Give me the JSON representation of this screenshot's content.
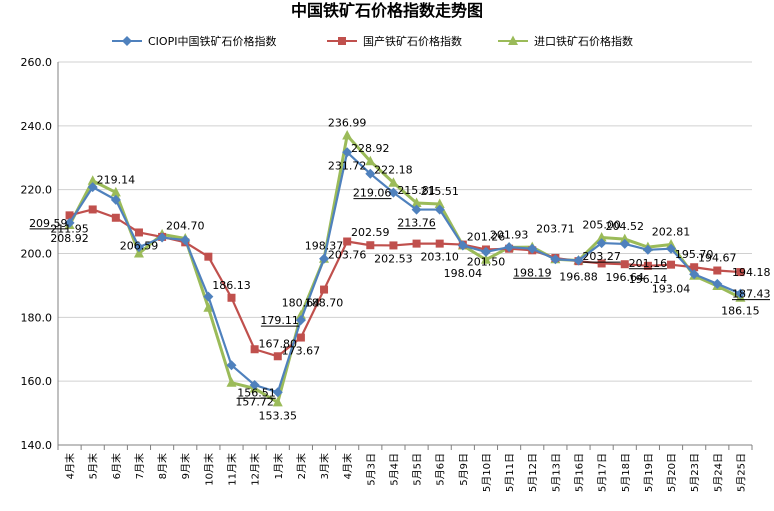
{
  "chart_data": {
    "type": "line",
    "title": "中国铁矿石价格指数走势图",
    "xlabel": "",
    "ylabel": "",
    "ylim": [
      140,
      260
    ],
    "yticks": [
      "140.0",
      "160.0",
      "180.0",
      "200.0",
      "220.0",
      "240.0",
      "260.0"
    ],
    "grid": "horizontal",
    "legend_position": "top",
    "categories": [
      "4月末",
      "5月末",
      "6月末",
      "7月末",
      "8月末",
      "9月末",
      "10月末",
      "11月末",
      "12月末",
      "1月末",
      "2月末",
      "3月末",
      "4月末",
      "5月3日",
      "5月4日",
      "5月5日",
      "5月6日",
      "5月9日",
      "5月10日",
      "5月11日",
      "5月12日",
      "5月13日",
      "5月16日",
      "5月17日",
      "5月18日",
      "5月19日",
      "5月20日",
      "5月23日",
      "5月24日",
      "5月25日"
    ],
    "series": [
      {
        "name": "CIOPI中国铁矿石价格指数",
        "color": "#4F81BD",
        "marker": "diamond",
        "values": [
          209.59,
          220.8,
          216.8,
          202.0,
          205.0,
          204.2,
          186.5,
          165.0,
          158.8,
          156.51,
          179.11,
          198.37,
          231.72,
          225.0,
          219.06,
          213.76,
          213.76,
          202.5,
          200.5,
          202.0,
          201.5,
          198.19,
          197.8,
          203.27,
          203.0,
          201.16,
          201.5,
          193.5,
          190.5,
          187.43
        ]
      },
      {
        "name": "国产铁矿石价格指数",
        "color": "#C0504D",
        "marker": "square",
        "values": [
          211.95,
          213.8,
          211.2,
          206.59,
          205.2,
          203.5,
          199.0,
          186.13,
          170.0,
          167.8,
          173.67,
          188.7,
          203.76,
          202.59,
          202.53,
          203.1,
          203.1,
          202.8,
          201.26,
          201.5,
          201.0,
          198.6,
          197.6,
          196.88,
          196.64,
          196.14,
          196.5,
          195.7,
          194.67,
          194.18
        ]
      },
      {
        "name": "进口铁矿石价格指数",
        "color": "#9BBB59",
        "marker": "triangle",
        "values": [
          208.92,
          222.8,
          219.14,
          200.0,
          206.0,
          204.7,
          183.0,
          159.5,
          157.72,
          153.35,
          180.64,
          198.37,
          236.99,
          228.92,
          222.18,
          215.81,
          215.51,
          202.5,
          198.04,
          201.93,
          202.0,
          198.19,
          197.8,
          205.0,
          204.52,
          202.0,
          202.81,
          193.04,
          189.8,
          186.15
        ]
      }
    ],
    "labels": [
      {
        "text": "211.95",
        "cat": 0,
        "y": 211.95,
        "anchor": "below"
      },
      {
        "text": "209.59",
        "cat": 0,
        "y": 209.59,
        "anchor": "left",
        "underline": true
      },
      {
        "text": "208.92",
        "cat": 0,
        "y": 208.92,
        "anchor": "below"
      },
      {
        "text": "219.14",
        "cat": 2,
        "y": 219.14,
        "anchor": "above"
      },
      {
        "text": "206.59",
        "cat": 3,
        "y": 206.59,
        "anchor": "below"
      },
      {
        "text": "204.70",
        "cat": 5,
        "y": 204.7,
        "anchor": "above"
      },
      {
        "text": "186.13",
        "cat": 7,
        "y": 186.13,
        "anchor": "above"
      },
      {
        "text": "157.72",
        "cat": 8,
        "y": 157.72,
        "anchor": "below"
      },
      {
        "text": "156.51",
        "cat": 9,
        "y": 156.51,
        "anchor": "left",
        "underline": true
      },
      {
        "text": "153.35",
        "cat": 9,
        "y": 153.35,
        "anchor": "below"
      },
      {
        "text": "167.80",
        "cat": 9,
        "y": 167.8,
        "anchor": "above"
      },
      {
        "text": "180.64",
        "cat": 10,
        "y": 180.64,
        "anchor": "above"
      },
      {
        "text": "179.11",
        "cat": 10,
        "y": 179.11,
        "anchor": "left",
        "underline": true
      },
      {
        "text": "173.67",
        "cat": 10,
        "y": 173.67,
        "anchor": "below"
      },
      {
        "text": "198.37",
        "cat": 11,
        "y": 198.37,
        "anchor": "above"
      },
      {
        "text": "188.70",
        "cat": 11,
        "y": 188.7,
        "anchor": "below"
      },
      {
        "text": "236.99",
        "cat": 12,
        "y": 236.99,
        "anchor": "above"
      },
      {
        "text": "231.72",
        "cat": 12,
        "y": 231.72,
        "anchor": "below"
      },
      {
        "text": "203.76",
        "cat": 12,
        "y": 203.76,
        "anchor": "below"
      },
      {
        "text": "228.92",
        "cat": 13,
        "y": 228.92,
        "anchor": "above"
      },
      {
        "text": "202.59",
        "cat": 13,
        "y": 202.59,
        "anchor": "above"
      },
      {
        "text": "222.18",
        "cat": 14,
        "y": 222.18,
        "anchor": "above"
      },
      {
        "text": "219.06",
        "cat": 14,
        "y": 219.06,
        "anchor": "left",
        "underline": true
      },
      {
        "text": "202.53",
        "cat": 14,
        "y": 202.53,
        "anchor": "below"
      },
      {
        "text": "213.76",
        "cat": 15,
        "y": 213.76,
        "anchor": "below",
        "underline": true
      },
      {
        "text": "215.81",
        "cat": 15,
        "y": 215.81,
        "anchor": "above"
      },
      {
        "text": "215.51",
        "cat": 16,
        "y": 215.51,
        "anchor": "above"
      },
      {
        "text": "203.10",
        "cat": 16,
        "y": 203.1,
        "anchor": "below"
      },
      {
        "text": "201.26",
        "cat": 18,
        "y": 201.26,
        "anchor": "above"
      },
      {
        "text": "198.04",
        "cat": 17,
        "y": 198.04,
        "anchor": "below"
      },
      {
        "text": "201.50",
        "cat": 18,
        "y": 201.5,
        "anchor": "below"
      },
      {
        "text": "201.93",
        "cat": 19,
        "y": 201.93,
        "anchor": "above"
      },
      {
        "text": "198.19",
        "cat": 20,
        "y": 198.19,
        "anchor": "below",
        "underline": true
      },
      {
        "text": "203.71",
        "cat": 21,
        "y": 203.71,
        "anchor": "above"
      },
      {
        "text": "205.00",
        "cat": 23,
        "y": 205.0,
        "anchor": "above"
      },
      {
        "text": "196.88",
        "cat": 22,
        "y": 196.88,
        "anchor": "below"
      },
      {
        "text": "204.52",
        "cat": 24,
        "y": 204.52,
        "anchor": "above"
      },
      {
        "text": "203.27",
        "cat": 23,
        "y": 203.27,
        "anchor": "below",
        "underline": true
      },
      {
        "text": "196.64",
        "cat": 24,
        "y": 196.64,
        "anchor": "below"
      },
      {
        "text": "201.16",
        "cat": 25,
        "y": 201.16,
        "anchor": "below",
        "underline": true
      },
      {
        "text": "196.14",
        "cat": 25,
        "y": 196.14,
        "anchor": "below"
      },
      {
        "text": "202.81",
        "cat": 26,
        "y": 202.81,
        "anchor": "above"
      },
      {
        "text": "193.04",
        "cat": 26,
        "y": 193.04,
        "anchor": "below"
      },
      {
        "text": "195.70",
        "cat": 27,
        "y": 195.7,
        "anchor": "above"
      },
      {
        "text": "194.67",
        "cat": 28,
        "y": 194.67,
        "anchor": "above"
      },
      {
        "text": "194.18",
        "cat": 29,
        "y": 194.18,
        "anchor": "right"
      },
      {
        "text": "187.43",
        "cat": 29,
        "y": 187.43,
        "anchor": "right",
        "underline": true
      },
      {
        "text": "186.15",
        "cat": 29,
        "y": 186.15,
        "anchor": "below"
      }
    ]
  }
}
